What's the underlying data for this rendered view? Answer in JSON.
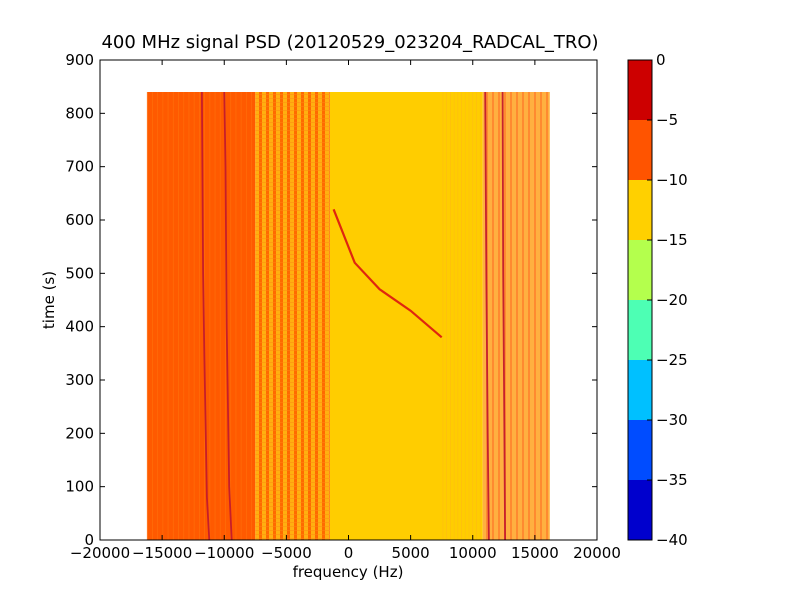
{
  "chart_data": {
    "type": "heatmap",
    "title": "400 MHz signal PSD (20120529_023204_RADCAL_TRO)",
    "xlabel": "frequency (Hz)",
    "ylabel": "time (s)",
    "xlim": [
      -20000,
      20000
    ],
    "ylim": [
      0,
      900
    ],
    "x_ticks": [
      -20000,
      -15000,
      -10000,
      -5000,
      0,
      5000,
      10000,
      15000,
      20000
    ],
    "x_tick_labels": [
      "−20000",
      "−15000",
      "−10000",
      "−5000",
      "0",
      "5000",
      "10000",
      "15000",
      "20000"
    ],
    "y_ticks": [
      0,
      100,
      200,
      300,
      400,
      500,
      600,
      700,
      800,
      900
    ],
    "y_tick_labels": [
      "0",
      "100",
      "200",
      "300",
      "400",
      "500",
      "600",
      "700",
      "800",
      "900"
    ],
    "data_extent": {
      "freq_min": -16200,
      "freq_max": 16200,
      "time_min": 0,
      "time_max": 840
    },
    "colorbar": {
      "levels": [
        -40,
        -35,
        -30,
        -25,
        -20,
        -15,
        -10,
        -5,
        0
      ],
      "tick_labels": [
        "−40",
        "−35",
        "−30",
        "−25",
        "−20",
        "−15",
        "−10",
        "−5",
        "0"
      ],
      "colors": [
        "#0000cd",
        "#004cff",
        "#00c0ff",
        "#4dffb4",
        "#b4ff4d",
        "#ffd000",
        "#ff5400",
        "#cd0000"
      ]
    },
    "regions": [
      {
        "freq_range": [
          -16200,
          -7500
        ],
        "level": "-10 to -5",
        "color": "#ff5a00"
      },
      {
        "freq_range": [
          -7500,
          -1500
        ],
        "level": "-15 to -10 / -10 to -5 striped",
        "color": "#ff9a1a"
      },
      {
        "freq_range": [
          -1500,
          10800
        ],
        "level": "-15 to -10",
        "color": "#ffcd00"
      },
      {
        "freq_range": [
          10800,
          16200
        ],
        "level": "-10 to -5 mixed",
        "color": "#ff9030"
      }
    ],
    "signal_lines": [
      {
        "name": "drifting carrier",
        "points": [
          [
            -1200,
            620
          ],
          [
            500,
            520
          ],
          [
            2500,
            470
          ],
          [
            5000,
            430
          ],
          [
            7500,
            380
          ]
        ]
      },
      {
        "name": "line",
        "points": [
          [
            -11800,
            840
          ],
          [
            -11700,
            500
          ],
          [
            -11600,
            340
          ],
          [
            -11400,
            80
          ],
          [
            -11200,
            0
          ]
        ]
      },
      {
        "name": "line",
        "points": [
          [
            -10000,
            840
          ],
          [
            -9900,
            700
          ],
          [
            -9800,
            400
          ],
          [
            -9600,
            100
          ],
          [
            -9400,
            0
          ]
        ]
      },
      {
        "name": "line",
        "points": [
          [
            11000,
            840
          ],
          [
            11100,
            480
          ],
          [
            11200,
            200
          ],
          [
            11300,
            0
          ]
        ]
      },
      {
        "name": "line",
        "points": [
          [
            12400,
            840
          ],
          [
            12450,
            500
          ],
          [
            12550,
            200
          ],
          [
            12600,
            0
          ]
        ]
      }
    ]
  }
}
